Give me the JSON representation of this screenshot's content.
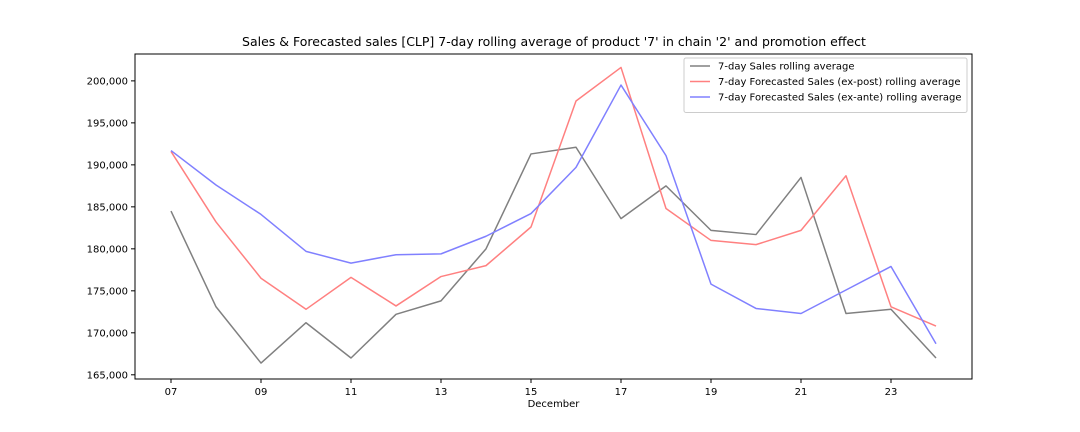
{
  "chart_data": {
    "type": "line",
    "title": "Sales & Forecasted sales [CLP] 7-day rolling average of product '7' in chain '2' and promotion effect",
    "xlabel": "December",
    "ylabel": "",
    "x": [
      7,
      8,
      9,
      10,
      11,
      12,
      13,
      14,
      15,
      16,
      17,
      18,
      19,
      20,
      21,
      22,
      23,
      24
    ],
    "x_tick_values": [
      7,
      9,
      11,
      13,
      15,
      17,
      19,
      21,
      23
    ],
    "x_tick_labels": [
      "07",
      "09",
      "11",
      "13",
      "15",
      "17",
      "19",
      "21",
      "23"
    ],
    "xlim": [
      6.2,
      24.8
    ],
    "ylim": [
      164500,
      203200
    ],
    "y_tick_values": [
      165000,
      170000,
      175000,
      180000,
      185000,
      190000,
      195000,
      200000
    ],
    "y_tick_labels": [
      "165,000",
      "170,000",
      "175,000",
      "180,000",
      "185,000",
      "190,000",
      "195,000",
      "200,000"
    ],
    "grid": false,
    "legend_position": "top-right",
    "series": [
      {
        "name": "7-day Sales rolling average",
        "color": "#808080",
        "values": [
          184500,
          173100,
          166400,
          171200,
          167000,
          172200,
          173800,
          180000,
          191300,
          192100,
          183600,
          187500,
          182200,
          181700,
          188500,
          172300,
          172800,
          167000
        ]
      },
      {
        "name": "7-day Forecasted Sales (ex-post) rolling average",
        "color": "#ff8080",
        "values": [
          191600,
          183200,
          176500,
          172800,
          176600,
          173200,
          176700,
          178000,
          182600,
          197600,
          201600,
          184800,
          181000,
          180500,
          182200,
          188700,
          173100,
          170800
        ]
      },
      {
        "name": "7-day Forecasted Sales (ex-ante) rolling average",
        "color": "#8080ff",
        "values": [
          191700,
          187600,
          184100,
          179700,
          178300,
          179300,
          179400,
          181500,
          184200,
          189700,
          199500,
          191100,
          175800,
          172900,
          172300,
          175100,
          177900,
          168700
        ]
      }
    ]
  }
}
